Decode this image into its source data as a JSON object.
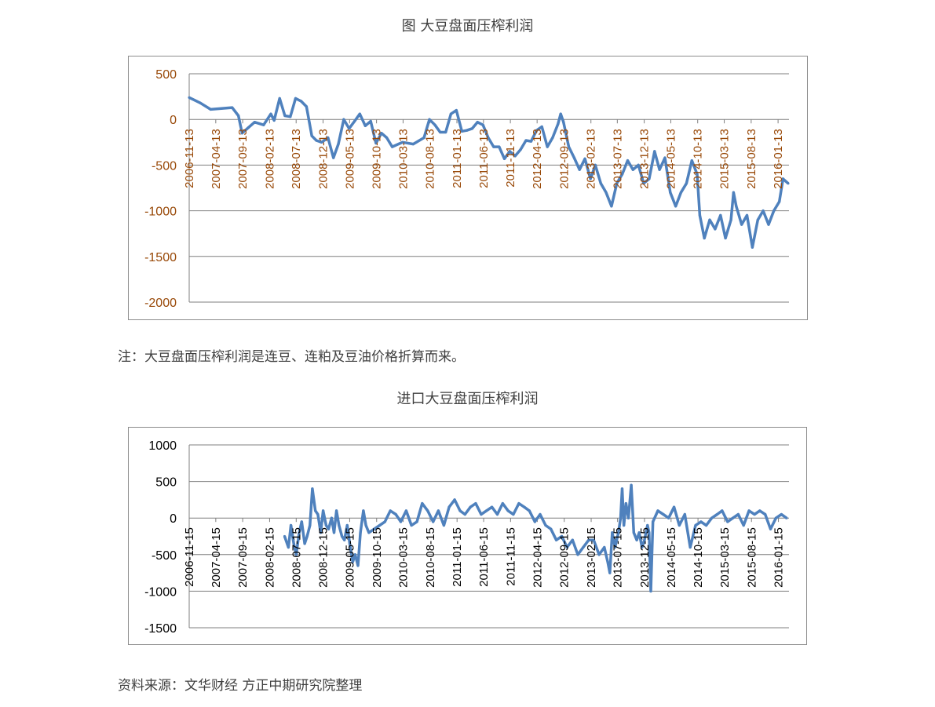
{
  "figure1": {
    "title": "图  大豆盘面压榨利润",
    "note": "注：大豆盘面压榨利润是连豆、连粕及豆油价格折算而来。"
  },
  "figure2": {
    "title": "进口大豆盘面压榨利润",
    "source": "资料来源：文华财经  方正中期研究院整理"
  },
  "colors": {
    "line": "#4f81bd",
    "axis_text_chart1": "#984807",
    "axis_text_chart2": "#000000",
    "grid": "#7f7f7f"
  },
  "chart_data": [
    {
      "type": "line",
      "title": "图  大豆盘面压榨利润",
      "ylim": [
        -2000,
        500
      ],
      "yticks": [
        500,
        0,
        -500,
        -1000,
        -1500,
        -2000
      ],
      "x_tick_labels": [
        "2006-11-13",
        "2007-04-13",
        "2007-09-13",
        "2008-02-13",
        "2008-07-13",
        "2008-12-13",
        "2009-05-13",
        "2009-10-13",
        "2010-03-13",
        "2010-08-13",
        "2011-01-13",
        "2011-06-13",
        "2011-11-13",
        "2012-04-13",
        "2012-09-13",
        "2013-02-13",
        "2013-07-13",
        "2013-12-13",
        "2014-05-13",
        "2014-10-13",
        "2015-03-13",
        "2015-08-13",
        "2016-01-13"
      ],
      "xlim": [
        "2006-11-13",
        "2016-03-15"
      ],
      "x": [
        "2006-11-13",
        "2007-01-15",
        "2007-03-15",
        "2007-05-15",
        "2007-07-15",
        "2007-08-20",
        "2007-09-10",
        "2007-10-15",
        "2007-11-20",
        "2008-01-10",
        "2008-02-20",
        "2008-03-10",
        "2008-04-10",
        "2008-05-10",
        "2008-06-10",
        "2008-07-10",
        "2008-08-10",
        "2008-09-10",
        "2008-10-10",
        "2008-11-05",
        "2008-12-05",
        "2009-01-10",
        "2009-02-10",
        "2009-03-10",
        "2009-04-10",
        "2009-05-10",
        "2009-06-10",
        "2009-07-10",
        "2009-08-10",
        "2009-09-10",
        "2009-10-10",
        "2009-11-10",
        "2009-12-10",
        "2010-01-10",
        "2010-03-10",
        "2010-05-10",
        "2010-07-10",
        "2010-08-10",
        "2010-09-10",
        "2010-10-10",
        "2010-11-10",
        "2010-12-10",
        "2011-01-10",
        "2011-02-10",
        "2011-03-10",
        "2011-04-10",
        "2011-05-10",
        "2011-06-10",
        "2011-07-10",
        "2011-08-10",
        "2011-09-10",
        "2011-10-10",
        "2011-11-10",
        "2011-12-10",
        "2012-01-10",
        "2012-02-10",
        "2012-03-10",
        "2012-04-10",
        "2012-05-10",
        "2012-06-10",
        "2012-07-10",
        "2012-08-10",
        "2012-08-25",
        "2012-09-10",
        "2012-10-10",
        "2012-11-10",
        "2012-12-10",
        "2013-01-10",
        "2013-02-10",
        "2013-03-10",
        "2013-04-10",
        "2013-05-10",
        "2013-06-10",
        "2013-07-10",
        "2013-08-10",
        "2013-09-10",
        "2013-10-10",
        "2013-11-10",
        "2013-12-10",
        "2014-01-10",
        "2014-02-10",
        "2014-03-10",
        "2014-04-10",
        "2014-05-10",
        "2014-06-10",
        "2014-07-10",
        "2014-08-10",
        "2014-09-10",
        "2014-10-10",
        "2014-10-25",
        "2014-11-20",
        "2014-12-20",
        "2015-01-20",
        "2015-02-20",
        "2015-03-20",
        "2015-04-20",
        "2015-05-05",
        "2015-05-20",
        "2015-06-20",
        "2015-07-20",
        "2015-08-20",
        "2015-09-20",
        "2015-10-20",
        "2015-11-20",
        "2015-12-20",
        "2016-01-20",
        "2016-02-10",
        "2016-03-10"
      ],
      "series": [
        {
          "values": [
            240,
            180,
            110,
            120,
            130,
            40,
            -150,
            -90,
            -30,
            -60,
            60,
            -10,
            230,
            40,
            30,
            230,
            200,
            140,
            -180,
            -230,
            -250,
            -200,
            -420,
            -270,
            0,
            -100,
            -20,
            60,
            -70,
            -20,
            -260,
            -150,
            -200,
            -300,
            -250,
            -270,
            -200,
            0,
            -60,
            -140,
            -140,
            60,
            100,
            -130,
            -120,
            -100,
            -30,
            -60,
            -200,
            -300,
            -300,
            -430,
            -350,
            -400,
            -330,
            -230,
            -240,
            -120,
            -80,
            -300,
            -200,
            -50,
            60,
            -30,
            -300,
            -420,
            -550,
            -430,
            -650,
            -500,
            -700,
            -800,
            -950,
            -700,
            -600,
            -450,
            -550,
            -500,
            -700,
            -650,
            -350,
            -550,
            -420,
            -800,
            -950,
            -800,
            -700,
            -450,
            -600,
            -1050,
            -1300,
            -1100,
            -1200,
            -1050,
            -1300,
            -1100,
            -800,
            -950,
            -1150,
            -1050,
            -1400,
            -1100,
            -1000,
            -1150,
            -1000,
            -900,
            -650,
            -700
          ]
        }
      ]
    },
    {
      "type": "line",
      "title": "进口大豆盘面压榨利润",
      "ylim": [
        -1500,
        1000
      ],
      "yticks": [
        1000,
        500,
        0,
        -500,
        -1000,
        -1500
      ],
      "x_tick_labels": [
        "2006-11-15",
        "2007-04-15",
        "2007-09-15",
        "2008-02-15",
        "2008-07-15",
        "2008-12-15",
        "2009-05-15",
        "2009-10-15",
        "2010-03-15",
        "2010-08-15",
        "2011-01-15",
        "2011-06-15",
        "2011-11-15",
        "2012-04-15",
        "2012-09-15",
        "2013-02-15",
        "2013-07-15",
        "2013-12-15",
        "2014-05-15",
        "2014-10-15",
        "2015-03-15",
        "2015-08-15",
        "2016-01-15"
      ],
      "xlim": [
        "2006-11-15",
        "2016-03-15"
      ],
      "x": [
        "2008-05-10",
        "2008-06-01",
        "2008-06-15",
        "2008-07-01",
        "2008-07-15",
        "2008-08-01",
        "2008-08-15",
        "2008-09-01",
        "2008-09-15",
        "2008-10-01",
        "2008-10-15",
        "2008-11-01",
        "2008-11-15",
        "2008-12-01",
        "2008-12-15",
        "2009-01-01",
        "2009-01-15",
        "2009-02-01",
        "2009-02-15",
        "2009-03-01",
        "2009-03-15",
        "2009-04-01",
        "2009-04-15",
        "2009-05-01",
        "2009-05-15",
        "2009-06-01",
        "2009-06-15",
        "2009-07-01",
        "2009-07-15",
        "2009-08-01",
        "2009-08-15",
        "2009-09-01",
        "2009-10-01",
        "2009-11-01",
        "2009-12-01",
        "2010-01-01",
        "2010-02-01",
        "2010-03-01",
        "2010-04-01",
        "2010-05-01",
        "2010-06-01",
        "2010-07-01",
        "2010-08-01",
        "2010-09-01",
        "2010-10-01",
        "2010-11-01",
        "2010-12-01",
        "2011-01-01",
        "2011-02-01",
        "2011-03-01",
        "2011-04-01",
        "2011-05-01",
        "2011-06-01",
        "2011-07-01",
        "2011-08-01",
        "2011-09-01",
        "2011-10-01",
        "2011-11-01",
        "2011-12-01",
        "2012-01-01",
        "2012-02-01",
        "2012-03-01",
        "2012-04-01",
        "2012-05-01",
        "2012-06-01",
        "2012-07-01",
        "2012-08-01",
        "2012-09-01",
        "2012-10-01",
        "2012-11-01",
        "2012-12-01",
        "2013-01-01",
        "2013-02-01",
        "2013-03-01",
        "2013-04-01",
        "2013-05-01",
        "2013-05-20",
        "2013-06-01",
        "2013-06-15",
        "2013-07-01",
        "2013-07-10",
        "2013-07-20",
        "2013-08-01",
        "2013-08-10",
        "2013-08-20",
        "2013-09-01",
        "2013-09-15",
        "2013-10-01",
        "2013-10-15",
        "2013-11-01",
        "2013-11-15",
        "2013-12-01",
        "2013-12-15",
        "2014-01-01",
        "2014-01-10",
        "2014-01-20",
        "2014-02-01",
        "2014-03-01",
        "2014-04-01",
        "2014-05-01",
        "2014-06-01",
        "2014-07-01",
        "2014-08-01",
        "2014-09-01",
        "2014-10-01",
        "2014-11-01",
        "2014-12-01",
        "2015-01-01",
        "2015-02-01",
        "2015-03-01",
        "2015-04-01",
        "2015-05-01",
        "2015-06-01",
        "2015-07-01",
        "2015-08-01",
        "2015-09-01",
        "2015-10-01",
        "2015-11-01",
        "2015-12-01",
        "2016-01-01",
        "2016-02-01",
        "2016-03-01"
      ],
      "series": [
        {
          "values": [
            -250,
            -400,
            -100,
            -350,
            -500,
            -200,
            -50,
            -350,
            -250,
            -100,
            400,
            100,
            50,
            -200,
            100,
            -100,
            -150,
            0,
            -200,
            100,
            -100,
            -250,
            -300,
            -100,
            -350,
            -600,
            -500,
            -650,
            -200,
            100,
            -100,
            -200,
            -150,
            -100,
            -50,
            100,
            50,
            -50,
            100,
            -100,
            -50,
            200,
            100,
            -50,
            100,
            -100,
            150,
            250,
            100,
            50,
            150,
            200,
            50,
            100,
            150,
            50,
            200,
            100,
            50,
            200,
            150,
            100,
            -50,
            50,
            -100,
            -150,
            -300,
            -250,
            -400,
            -300,
            -500,
            -400,
            -300,
            -300,
            -500,
            -400,
            -600,
            -750,
            -200,
            -400,
            -300,
            -200,
            0,
            400,
            -100,
            200,
            0,
            450,
            -200,
            -300,
            -200,
            -400,
            -300,
            -100,
            -200,
            -1000,
            -50,
            100,
            50,
            0,
            150,
            -100,
            50,
            -400,
            -100,
            -50,
            -100,
            0,
            50,
            100,
            -50,
            0,
            50,
            -100,
            100,
            50,
            100,
            50,
            -150,
            0,
            50,
            0
          ]
        }
      ]
    }
  ]
}
